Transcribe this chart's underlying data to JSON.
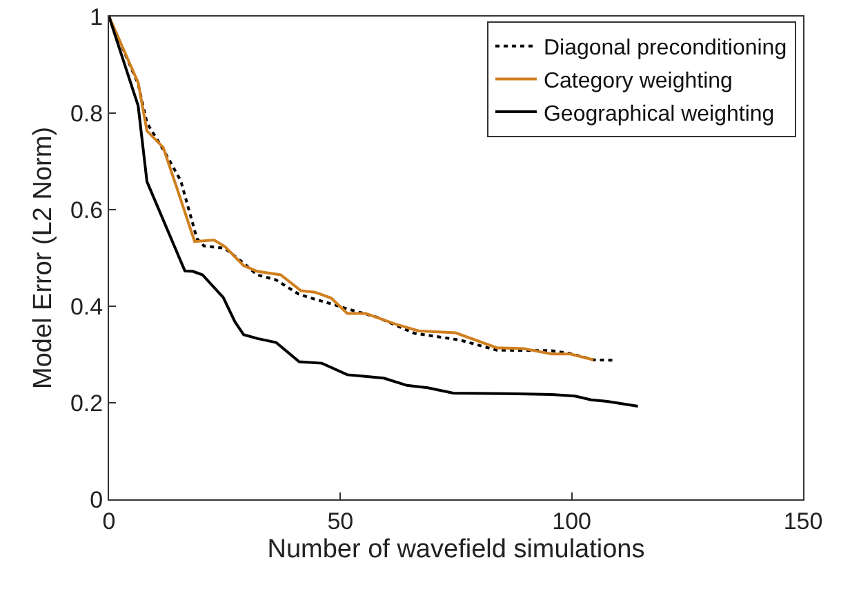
{
  "chart_data": {
    "type": "line",
    "xlabel": "Number of wavefield simulations",
    "ylabel": "Model Error (L2 Norm)",
    "xlim": [
      0,
      150
    ],
    "ylim": [
      0,
      1
    ],
    "xticks": [
      0,
      50,
      100,
      150
    ],
    "yticks": [
      0,
      0.2,
      0.4,
      0.6,
      0.8,
      1
    ],
    "grid": false,
    "legend": "top right",
    "marker": "none",
    "series": [
      {
        "name": "Diagonal preconditioning",
        "color": "#000000",
        "line_style": "dotted",
        "x": [
          0,
          6.3,
          8.2,
          12,
          15.5,
          19,
          20.5,
          25,
          29,
          32,
          36,
          41,
          43.6,
          48,
          51,
          58,
          66,
          75.8,
          83.8,
          95.7,
          99.7,
          104.7,
          109.2
        ],
        "values": [
          1,
          0.86,
          0.78,
          0.72,
          0.66,
          0.54,
          0.525,
          0.52,
          0.49,
          0.465,
          0.455,
          0.425,
          0.417,
          0.405,
          0.396,
          0.377,
          0.344,
          0.33,
          0.309,
          0.308,
          0.302,
          0.289,
          0.288
        ]
      },
      {
        "name": "Category weighting",
        "color": "#d07f1f",
        "line_style": "solid",
        "x": [
          0,
          6.3,
          8.2,
          11.7,
          14.7,
          18.5,
          22.7,
          25.1,
          29.1,
          32.1,
          37.1,
          41.5,
          44.5,
          48,
          51.5,
          55.5,
          61.9,
          66.9,
          74.9,
          83.8,
          89.8,
          95.7,
          99.7,
          104.7
        ],
        "values": [
          1,
          0.863,
          0.763,
          0.729,
          0.644,
          0.534,
          0.537,
          0.523,
          0.484,
          0.472,
          0.465,
          0.432,
          0.429,
          0.417,
          0.385,
          0.385,
          0.363,
          0.349,
          0.345,
          0.314,
          0.312,
          0.301,
          0.301,
          0.289
        ]
      },
      {
        "name": "Geographical weighting",
        "color": "#000000",
        "line_style": "solid",
        "x": [
          0,
          6.3,
          8.2,
          16.4,
          18.2,
          20.2,
          24.7,
          27.2,
          29.1,
          32.1,
          36.1,
          41.1,
          46,
          51.5,
          59.4,
          64.4,
          68.9,
          74.4,
          85.8,
          95.7,
          100.7,
          104.2,
          107.7,
          114.3
        ],
        "values": [
          1,
          0.815,
          0.658,
          0.473,
          0.472,
          0.465,
          0.418,
          0.368,
          0.341,
          0.333,
          0.325,
          0.285,
          0.282,
          0.258,
          0.251,
          0.236,
          0.231,
          0.22,
          0.219,
          0.217,
          0.214,
          0.206,
          0.203,
          0.193
        ]
      }
    ]
  }
}
